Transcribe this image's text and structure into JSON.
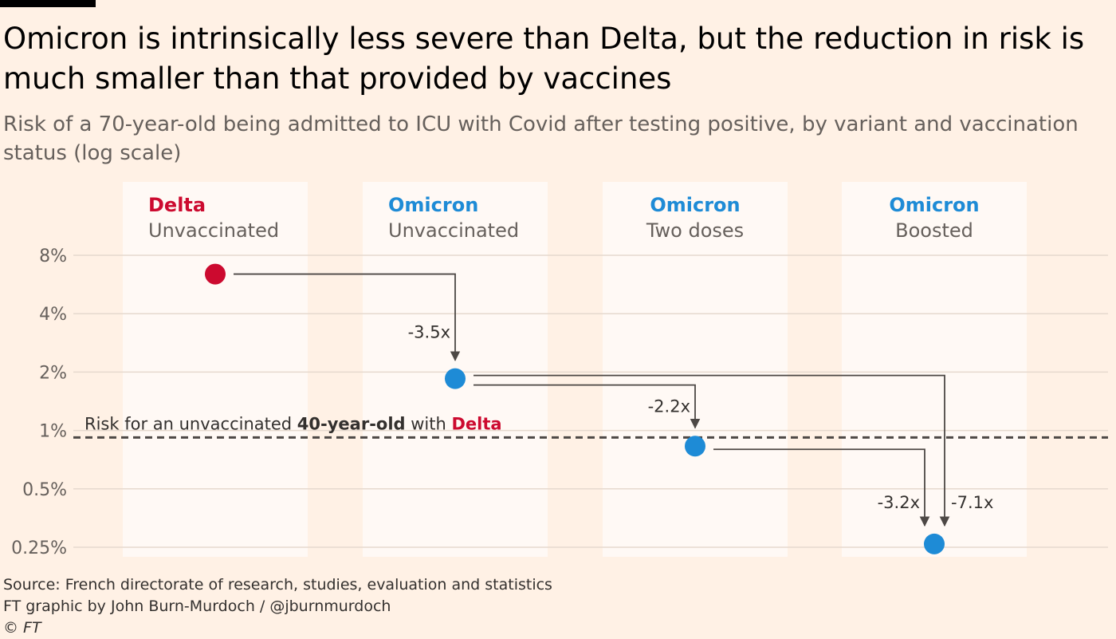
{
  "title": "Omicron is intrinsically less severe than Delta, but the reduction in risk is much smaller than that provided by vaccines",
  "subtitle": "Risk of a 70-year-old being admitted to ICU with Covid after testing positive, by variant and vaccination status (log scale)",
  "footer": {
    "source": "Source: French directorate of research, studies, evaluation and statistics",
    "credit": "FT graphic by John Burn-Murdoch / @jburnmurdoch",
    "copyright": "© FT"
  },
  "chart_data": {
    "type": "scatter",
    "yscale": "log",
    "ylim": [
      0.25,
      8
    ],
    "yticks": [
      {
        "value": 8,
        "label": "8%"
      },
      {
        "value": 4,
        "label": "4%"
      },
      {
        "value": 2,
        "label": "2%"
      },
      {
        "value": 1,
        "label": "1%"
      },
      {
        "value": 0.5,
        "label": "0.5%"
      },
      {
        "value": 0.25,
        "label": "0.25%"
      }
    ],
    "columns": [
      {
        "variant": "Delta",
        "status": "Unvaccinated",
        "value": 6.4,
        "color": "#CC0A2F"
      },
      {
        "variant": "Omicron",
        "status": "Unvaccinated",
        "value": 1.85,
        "color": "#1E8BD6"
      },
      {
        "variant": "Omicron",
        "status": "Two doses",
        "value": 0.83,
        "color": "#1E8BD6"
      },
      {
        "variant": "Omicron",
        "status": "Boosted",
        "value": 0.26,
        "color": "#1E8BD6"
      }
    ],
    "arrows": [
      {
        "from": 0,
        "to": 1,
        "label": "-3.5x"
      },
      {
        "from": 1,
        "to": 2,
        "label": "-2.2x"
      },
      {
        "from": 2,
        "to": 3,
        "label": "-3.2x"
      },
      {
        "from": 1,
        "to": 3,
        "label": "-7.1x"
      }
    ],
    "reference": {
      "value": 0.92,
      "text_before": "Risk for an unvaccinated ",
      "text_bold": "40-year-old",
      "text_middle": " with ",
      "text_colored": "Delta"
    }
  }
}
